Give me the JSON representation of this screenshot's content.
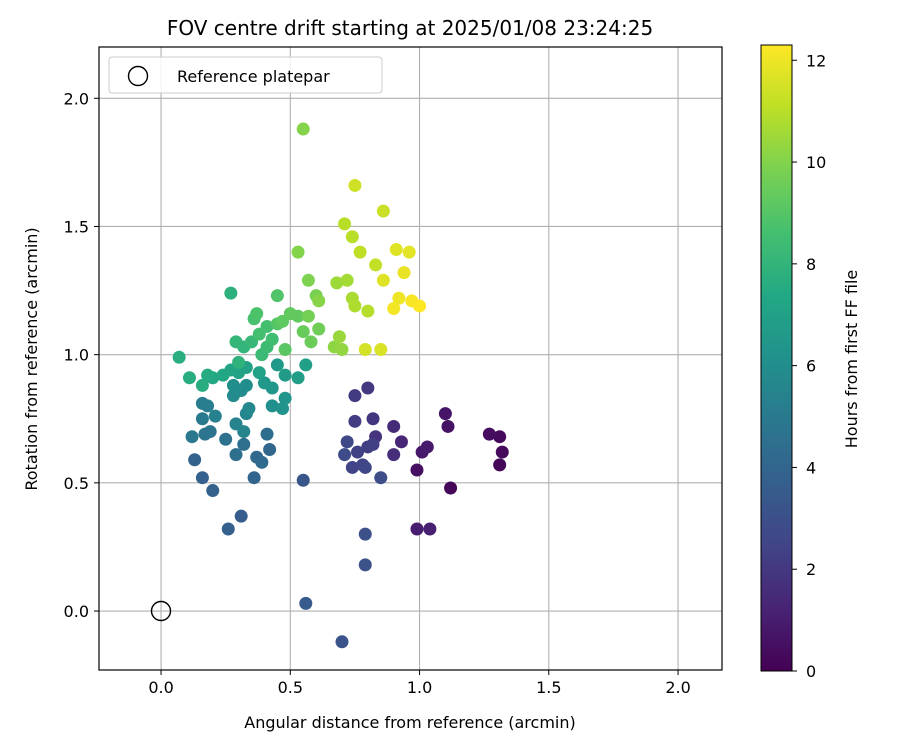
{
  "chart_data": {
    "type": "scatter",
    "title": "FOV centre drift starting at 2025/01/08 23:24:25",
    "xlabel": "Angular distance from reference (arcmin)",
    "ylabel": "Rotation from reference (arcmin)",
    "xlim": [
      -0.24,
      2.17
    ],
    "ylim": [
      -0.23,
      2.2
    ],
    "xticks": [
      "0.0",
      "0.5",
      "1.0",
      "1.5",
      "2.0"
    ],
    "xtick_values": [
      0,
      0.5,
      1.0,
      1.5,
      2.0
    ],
    "yticks": [
      "0.0",
      "0.5",
      "1.0",
      "1.5",
      "2.0"
    ],
    "ytick_values": [
      0,
      0.5,
      1.0,
      1.5,
      2.0
    ],
    "grid": true,
    "legend": {
      "position": "top-left",
      "entries": [
        "Reference platepar"
      ]
    },
    "reference_point": {
      "x": 0,
      "y": 0
    },
    "colorbar": {
      "label": "Hours from first FF file",
      "min": 0,
      "max": 12.3,
      "ticks": [
        "0",
        "2",
        "4",
        "6",
        "8",
        "10",
        "12"
      ],
      "tick_values": [
        0,
        2,
        4,
        6,
        8,
        10,
        12
      ],
      "colormap": "viridis"
    },
    "points": [
      {
        "x": 1.12,
        "y": 0.48,
        "t": 0.2
      },
      {
        "x": 1.31,
        "y": 0.57,
        "t": 0.2
      },
      {
        "x": 1.32,
        "y": 0.62,
        "t": 0.3
      },
      {
        "x": 1.31,
        "y": 0.68,
        "t": 0.3
      },
      {
        "x": 1.27,
        "y": 0.69,
        "t": 0.4
      },
      {
        "x": 0.99,
        "y": 0.55,
        "t": 0.5
      },
      {
        "x": 1.11,
        "y": 0.72,
        "t": 0.6
      },
      {
        "x": 1.1,
        "y": 0.77,
        "t": 0.7
      },
      {
        "x": 1.01,
        "y": 0.62,
        "t": 0.8
      },
      {
        "x": 1.03,
        "y": 0.64,
        "t": 0.9
      },
      {
        "x": 0.99,
        "y": 0.32,
        "t": 1.0
      },
      {
        "x": 1.04,
        "y": 0.32,
        "t": 1.1
      },
      {
        "x": 0.93,
        "y": 0.66,
        "t": 1.3
      },
      {
        "x": 0.9,
        "y": 0.72,
        "t": 1.5
      },
      {
        "x": 0.9,
        "y": 0.61,
        "t": 1.6
      },
      {
        "x": 0.83,
        "y": 0.68,
        "t": 1.8
      },
      {
        "x": 0.82,
        "y": 0.75,
        "t": 1.9
      },
      {
        "x": 0.8,
        "y": 0.87,
        "t": 2.0
      },
      {
        "x": 0.75,
        "y": 0.84,
        "t": 2.1
      },
      {
        "x": 0.75,
        "y": 0.74,
        "t": 2.2
      },
      {
        "x": 0.8,
        "y": 0.64,
        "t": 2.2
      },
      {
        "x": 0.82,
        "y": 0.65,
        "t": 2.3
      },
      {
        "x": 0.76,
        "y": 0.62,
        "t": 2.4
      },
      {
        "x": 0.78,
        "y": 0.57,
        "t": 2.5
      },
      {
        "x": 0.74,
        "y": 0.56,
        "t": 2.5
      },
      {
        "x": 0.79,
        "y": 0.56,
        "t": 2.6
      },
      {
        "x": 0.72,
        "y": 0.66,
        "t": 2.7
      },
      {
        "x": 0.71,
        "y": 0.61,
        "t": 2.8
      },
      {
        "x": 0.85,
        "y": 0.52,
        "t": 2.9
      },
      {
        "x": 0.79,
        "y": 0.3,
        "t": 3.0
      },
      {
        "x": 0.79,
        "y": 0.18,
        "t": 3.1
      },
      {
        "x": 0.7,
        "y": -0.12,
        "t": 3.2
      },
      {
        "x": 0.55,
        "y": 0.51,
        "t": 3.3
      },
      {
        "x": 0.56,
        "y": 0.03,
        "t": 3.5
      },
      {
        "x": 0.31,
        "y": 0.37,
        "t": 3.6
      },
      {
        "x": 0.26,
        "y": 0.32,
        "t": 3.7
      },
      {
        "x": 0.16,
        "y": 0.52,
        "t": 3.8
      },
      {
        "x": 0.13,
        "y": 0.59,
        "t": 3.9
      },
      {
        "x": 0.2,
        "y": 0.47,
        "t": 3.9
      },
      {
        "x": 0.36,
        "y": 0.52,
        "t": 4.0
      },
      {
        "x": 0.42,
        "y": 0.63,
        "t": 4.1
      },
      {
        "x": 0.37,
        "y": 0.6,
        "t": 4.2
      },
      {
        "x": 0.39,
        "y": 0.58,
        "t": 4.3
      },
      {
        "x": 0.41,
        "y": 0.69,
        "t": 4.4
      },
      {
        "x": 0.29,
        "y": 0.61,
        "t": 4.5
      },
      {
        "x": 0.32,
        "y": 0.65,
        "t": 4.5
      },
      {
        "x": 0.25,
        "y": 0.67,
        "t": 4.6
      },
      {
        "x": 0.19,
        "y": 0.7,
        "t": 4.7
      },
      {
        "x": 0.17,
        "y": 0.69,
        "t": 4.8
      },
      {
        "x": 0.12,
        "y": 0.68,
        "t": 4.9
      },
      {
        "x": 0.16,
        "y": 0.75,
        "t": 5.0
      },
      {
        "x": 0.16,
        "y": 0.81,
        "t": 5.1
      },
      {
        "x": 0.18,
        "y": 0.8,
        "t": 5.2
      },
      {
        "x": 0.21,
        "y": 0.76,
        "t": 5.3
      },
      {
        "x": 0.29,
        "y": 0.73,
        "t": 5.4
      },
      {
        "x": 0.32,
        "y": 0.7,
        "t": 5.5
      },
      {
        "x": 0.33,
        "y": 0.77,
        "t": 5.6
      },
      {
        "x": 0.34,
        "y": 0.79,
        "t": 5.7
      },
      {
        "x": 0.28,
        "y": 0.84,
        "t": 5.8
      },
      {
        "x": 0.31,
        "y": 0.86,
        "t": 5.9
      },
      {
        "x": 0.28,
        "y": 0.88,
        "t": 6.0
      },
      {
        "x": 0.33,
        "y": 0.88,
        "t": 6.0
      },
      {
        "x": 0.43,
        "y": 0.8,
        "t": 6.1
      },
      {
        "x": 0.47,
        "y": 0.79,
        "t": 6.2
      },
      {
        "x": 0.48,
        "y": 0.83,
        "t": 6.3
      },
      {
        "x": 0.43,
        "y": 0.87,
        "t": 6.4
      },
      {
        "x": 0.4,
        "y": 0.89,
        "t": 6.5
      },
      {
        "x": 0.45,
        "y": 0.96,
        "t": 6.6
      },
      {
        "x": 0.48,
        "y": 0.92,
        "t": 6.7
      },
      {
        "x": 0.53,
        "y": 0.91,
        "t": 6.8
      },
      {
        "x": 0.56,
        "y": 0.96,
        "t": 6.9
      },
      {
        "x": 0.38,
        "y": 0.93,
        "t": 7.0
      },
      {
        "x": 0.33,
        "y": 0.95,
        "t": 7.0
      },
      {
        "x": 0.3,
        "y": 0.93,
        "t": 7.1
      },
      {
        "x": 0.27,
        "y": 0.94,
        "t": 7.2
      },
      {
        "x": 0.24,
        "y": 0.92,
        "t": 7.3
      },
      {
        "x": 0.2,
        "y": 0.91,
        "t": 7.4
      },
      {
        "x": 0.18,
        "y": 0.92,
        "t": 7.5
      },
      {
        "x": 0.16,
        "y": 0.88,
        "t": 7.6
      },
      {
        "x": 0.11,
        "y": 0.91,
        "t": 7.6
      },
      {
        "x": 0.07,
        "y": 0.99,
        "t": 7.7
      },
      {
        "x": 0.27,
        "y": 1.24,
        "t": 7.8
      },
      {
        "x": 0.3,
        "y": 0.97,
        "t": 7.9
      },
      {
        "x": 0.32,
        "y": 1.03,
        "t": 8.0
      },
      {
        "x": 0.29,
        "y": 1.05,
        "t": 8.1
      },
      {
        "x": 0.35,
        "y": 1.05,
        "t": 8.2
      },
      {
        "x": 0.39,
        "y": 1.0,
        "t": 8.3
      },
      {
        "x": 0.41,
        "y": 1.03,
        "t": 8.4
      },
      {
        "x": 0.43,
        "y": 1.06,
        "t": 8.5
      },
      {
        "x": 0.38,
        "y": 1.08,
        "t": 8.6
      },
      {
        "x": 0.41,
        "y": 1.11,
        "t": 8.6
      },
      {
        "x": 0.36,
        "y": 1.14,
        "t": 8.7
      },
      {
        "x": 0.37,
        "y": 1.16,
        "t": 8.8
      },
      {
        "x": 0.45,
        "y": 1.23,
        "t": 8.9
      },
      {
        "x": 0.45,
        "y": 1.12,
        "t": 9.0
      },
      {
        "x": 0.48,
        "y": 1.02,
        "t": 9.1
      },
      {
        "x": 0.47,
        "y": 1.13,
        "t": 9.2
      },
      {
        "x": 0.5,
        "y": 1.16,
        "t": 9.3
      },
      {
        "x": 0.53,
        "y": 1.15,
        "t": 9.3
      },
      {
        "x": 0.55,
        "y": 1.09,
        "t": 9.4
      },
      {
        "x": 0.58,
        "y": 1.05,
        "t": 9.5
      },
      {
        "x": 0.61,
        "y": 1.1,
        "t": 9.6
      },
      {
        "x": 0.57,
        "y": 1.15,
        "t": 9.7
      },
      {
        "x": 0.6,
        "y": 1.23,
        "t": 9.8
      },
      {
        "x": 0.57,
        "y": 1.29,
        "t": 9.9
      },
      {
        "x": 0.53,
        "y": 1.4,
        "t": 10.0
      },
      {
        "x": 0.55,
        "y": 1.88,
        "t": 10.0
      },
      {
        "x": 0.61,
        "y": 1.21,
        "t": 10.1
      },
      {
        "x": 0.67,
        "y": 1.03,
        "t": 10.2
      },
      {
        "x": 0.7,
        "y": 1.02,
        "t": 10.3
      },
      {
        "x": 0.69,
        "y": 1.07,
        "t": 10.4
      },
      {
        "x": 0.68,
        "y": 1.28,
        "t": 10.5
      },
      {
        "x": 0.72,
        "y": 1.29,
        "t": 10.6
      },
      {
        "x": 0.74,
        "y": 1.22,
        "t": 10.7
      },
      {
        "x": 0.75,
        "y": 1.19,
        "t": 10.8
      },
      {
        "x": 0.8,
        "y": 1.17,
        "t": 10.9
      },
      {
        "x": 0.71,
        "y": 1.51,
        "t": 11.0
      },
      {
        "x": 0.74,
        "y": 1.46,
        "t": 11.0
      },
      {
        "x": 0.77,
        "y": 1.4,
        "t": 11.1
      },
      {
        "x": 0.83,
        "y": 1.35,
        "t": 11.2
      },
      {
        "x": 0.86,
        "y": 1.56,
        "t": 11.3
      },
      {
        "x": 0.75,
        "y": 1.66,
        "t": 11.4
      },
      {
        "x": 0.79,
        "y": 1.02,
        "t": 11.5
      },
      {
        "x": 0.85,
        "y": 1.02,
        "t": 11.6
      },
      {
        "x": 0.86,
        "y": 1.29,
        "t": 11.7
      },
      {
        "x": 0.91,
        "y": 1.41,
        "t": 11.7
      },
      {
        "x": 0.96,
        "y": 1.4,
        "t": 11.8
      },
      {
        "x": 0.94,
        "y": 1.32,
        "t": 11.9
      },
      {
        "x": 0.92,
        "y": 1.22,
        "t": 12.0
      },
      {
        "x": 0.9,
        "y": 1.18,
        "t": 12.1
      },
      {
        "x": 0.97,
        "y": 1.21,
        "t": 12.2
      },
      {
        "x": 1.0,
        "y": 1.19,
        "t": 12.3
      }
    ]
  }
}
